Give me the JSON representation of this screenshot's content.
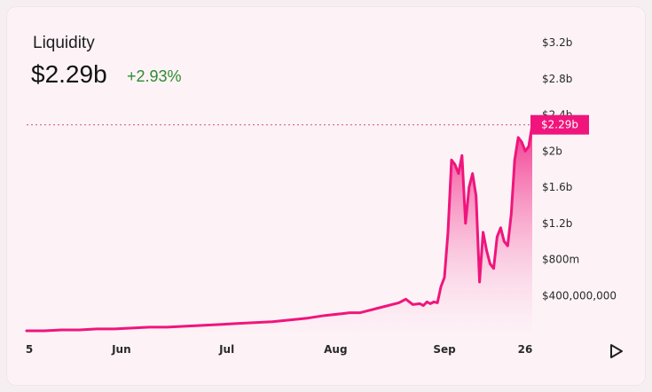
{
  "header": {
    "title": "Liquidity",
    "value": "$2.29b",
    "change": "+2.93%"
  },
  "colors": {
    "line": "#f0157c",
    "change_positive": "#2e8b2e"
  },
  "icons": {
    "play": "play-icon"
  },
  "chart_data": {
    "type": "area",
    "y_tick_labels": [
      "$3.2b",
      "$2.8b",
      "$2.4b",
      "$2b",
      "$1.6b",
      "$1.2b",
      "$800m",
      "$400,000,000"
    ],
    "y_tick_values": [
      3.2,
      2.8,
      2.4,
      2.0,
      1.6,
      1.2,
      0.8,
      0.4
    ],
    "x_tick_labels": [
      "5",
      "Jun",
      "Jul",
      "Aug",
      "Sep",
      "26"
    ],
    "x_tick_values": [
      0,
      27,
      57,
      88,
      119,
      144
    ],
    "ylim": [
      0,
      3.2
    ],
    "xlim": [
      0,
      144
    ],
    "current_label": "$2.29b",
    "current_value": 2.29,
    "x": [
      0,
      5,
      10,
      15,
      20,
      25,
      30,
      35,
      40,
      45,
      50,
      55,
      60,
      65,
      70,
      75,
      80,
      85,
      90,
      92,
      95,
      98,
      100,
      102,
      104,
      106,
      108,
      110,
      112,
      113,
      114,
      115,
      116,
      117,
      118,
      119,
      120,
      121,
      122,
      123,
      124,
      125,
      126,
      127,
      128,
      129,
      130,
      131,
      132,
      133,
      134,
      135,
      136,
      137,
      138,
      139,
      140,
      141,
      142,
      143,
      144
    ],
    "y": [
      0.01,
      0.01,
      0.02,
      0.02,
      0.03,
      0.03,
      0.04,
      0.05,
      0.05,
      0.06,
      0.07,
      0.08,
      0.09,
      0.1,
      0.11,
      0.13,
      0.15,
      0.18,
      0.2,
      0.21,
      0.21,
      0.24,
      0.26,
      0.28,
      0.3,
      0.32,
      0.36,
      0.3,
      0.31,
      0.29,
      0.33,
      0.31,
      0.33,
      0.32,
      0.5,
      0.6,
      1.1,
      1.9,
      1.85,
      1.75,
      1.95,
      1.2,
      1.6,
      1.75,
      1.5,
      0.55,
      1.1,
      0.9,
      0.75,
      0.7,
      1.05,
      1.15,
      1.0,
      0.95,
      1.3,
      1.9,
      2.15,
      2.1,
      2.0,
      2.05,
      2.29
    ]
  }
}
